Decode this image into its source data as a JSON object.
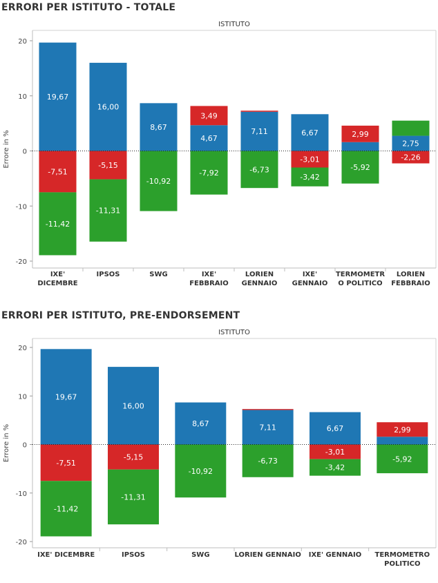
{
  "chart_data": [
    {
      "type": "bar",
      "stacked": true,
      "title": "ERRORI PER ISTITUTO - TOTALE",
      "column_header": "ISTITUTO",
      "ylabel": "Errore in %",
      "ylim": [
        -20,
        20
      ],
      "yticks": [
        "20",
        "10",
        "0",
        "-10",
        "-20"
      ],
      "categories": [
        [
          "IXE'",
          "DICEMBRE"
        ],
        [
          "IPSOS"
        ],
        [
          "SWG"
        ],
        [
          "IXE'",
          "FEBBRAIO"
        ],
        [
          "LORIEN",
          "GENNAIO"
        ],
        [
          "IXE'",
          "GENNAIO"
        ],
        [
          "TERMOMETR",
          "O POLITICO"
        ],
        [
          "LORIEN",
          "FEBBRAIO"
        ]
      ],
      "series": [
        {
          "color": "#1f77b4",
          "values": [
            19.67,
            16.0,
            8.67,
            4.67,
            7.11,
            6.67,
            1.6,
            2.75
          ],
          "labels": [
            "19,67",
            "16,00",
            "8,67",
            "4,67",
            "7,11",
            "6,67",
            "",
            "2,75"
          ]
        },
        {
          "color": "#d62728",
          "values": [
            -7.51,
            -5.15,
            0,
            3.49,
            0.2,
            -3.01,
            2.99,
            -2.26
          ],
          "labels": [
            "-7,51",
            "-5,15",
            "",
            "3,49",
            "",
            "-3,01",
            "2,99",
            "-2,26"
          ]
        },
        {
          "color": "#2ca02c",
          "values": [
            -11.42,
            -11.31,
            -10.92,
            -7.92,
            -6.73,
            -3.42,
            -5.92,
            2.75
          ],
          "labels": [
            "-11,42",
            "-11,31",
            "-10,92",
            "-7,92",
            "-6,73",
            "-3,42",
            "-5,92",
            ""
          ]
        }
      ]
    },
    {
      "type": "bar",
      "stacked": true,
      "title": "ERRORI PER ISTITUTO, PRE-ENDORSEMENT",
      "column_header": "ISTITUTO",
      "ylabel": "Errore in %",
      "ylim": [
        -20,
        20
      ],
      "yticks": [
        "20",
        "10",
        "0",
        "-10",
        "-20"
      ],
      "categories": [
        [
          "IXE' DICEMBRE"
        ],
        [
          "IPSOS"
        ],
        [
          "SWG"
        ],
        [
          "LORIEN GENNAIO"
        ],
        [
          "IXE' GENNAIO"
        ],
        [
          "TERMOMETRO",
          "POLITICO"
        ]
      ],
      "series": [
        {
          "color": "#1f77b4",
          "values": [
            19.67,
            16.0,
            8.67,
            7.11,
            6.67,
            1.6
          ],
          "labels": [
            "19,67",
            "16,00",
            "8,67",
            "7,11",
            "6,67",
            ""
          ]
        },
        {
          "color": "#d62728",
          "values": [
            -7.51,
            -5.15,
            0,
            0.2,
            -3.01,
            2.99
          ],
          "labels": [
            "-7,51",
            "-5,15",
            "",
            "",
            "-3,01",
            "2,99"
          ]
        },
        {
          "color": "#2ca02c",
          "values": [
            -11.42,
            -11.31,
            -10.92,
            -6.73,
            -3.42,
            -5.92
          ],
          "labels": [
            "-11,42",
            "-11,31",
            "-10,92",
            "-6,73",
            "-3,42",
            "-5,92"
          ]
        }
      ]
    }
  ]
}
